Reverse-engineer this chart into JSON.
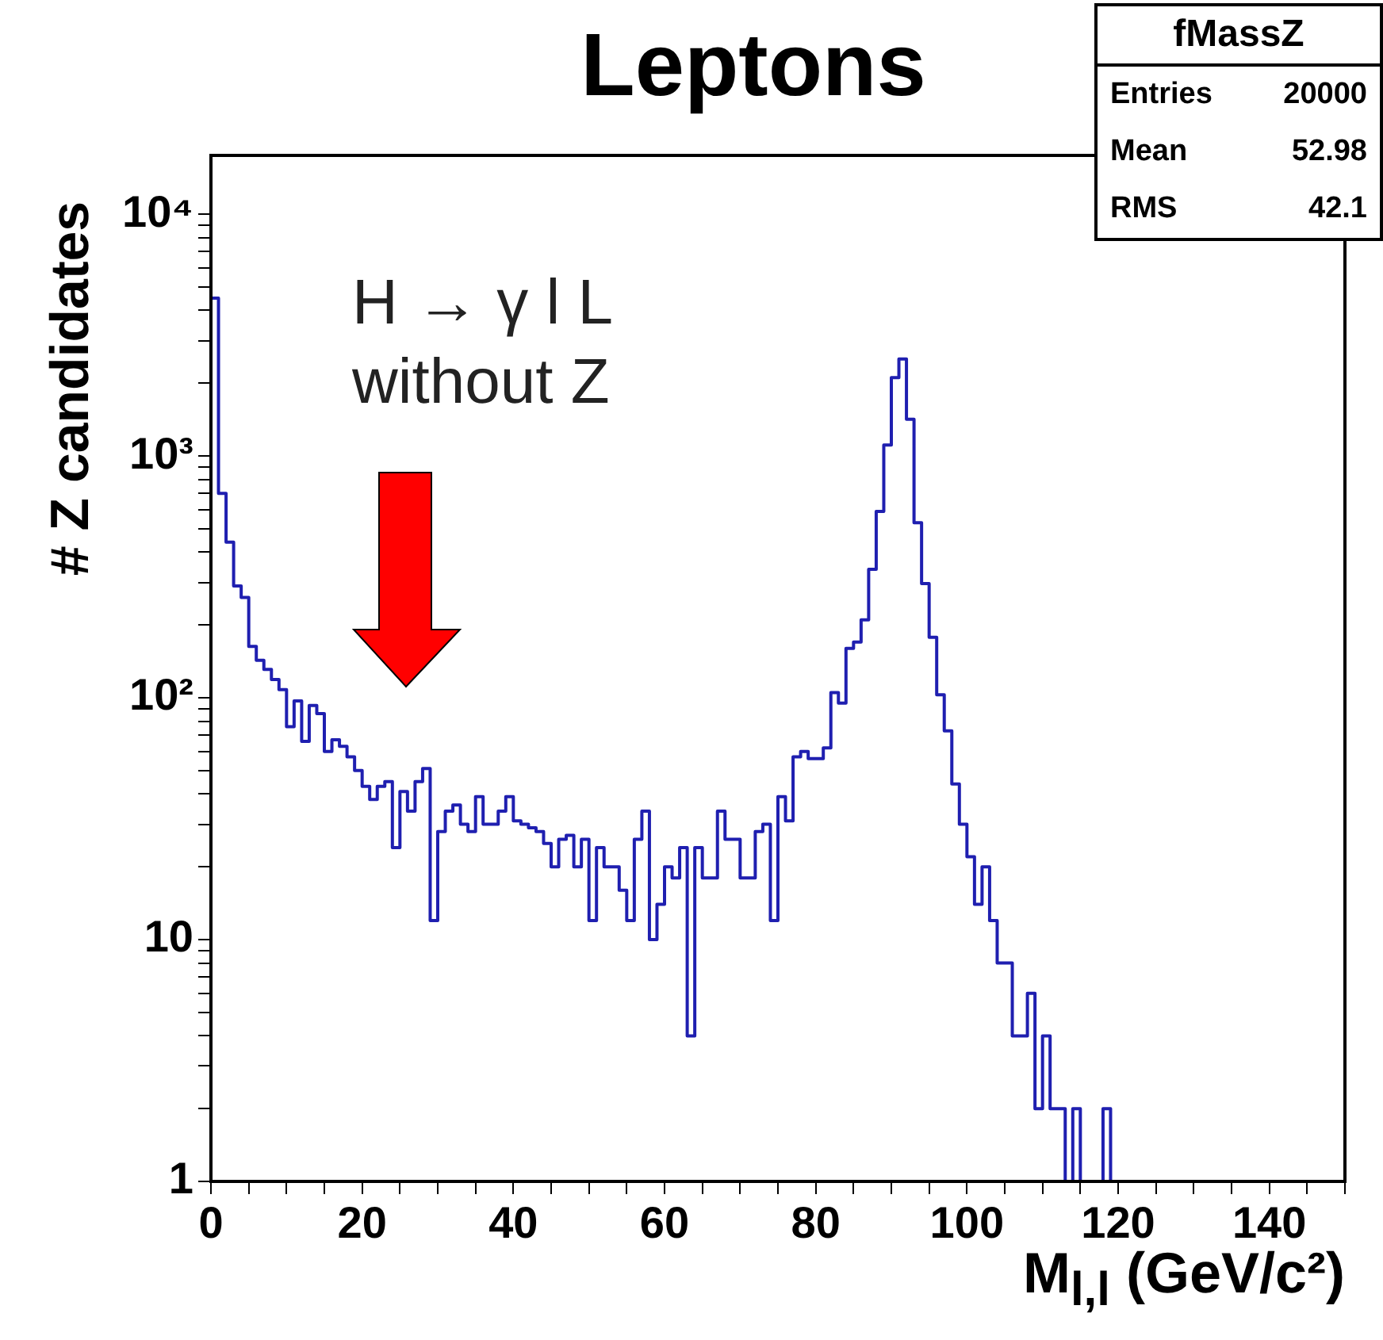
{
  "chart_data": {
    "type": "histogram",
    "title": "Leptons",
    "xlabel": "M$_{l,l}$ (GeV/c²)",
    "ylabel": "# Z candidates",
    "annotations": [
      "fMassZ",
      "Entries",
      "20000",
      "Mean",
      "52.98",
      "RMS",
      "42.1",
      "H → γ l L",
      "without Z"
    ],
    "bins": [
      0,
      1,
      2,
      3,
      4,
      5,
      6,
      7,
      8,
      9,
      10,
      11,
      12,
      13,
      14,
      15,
      16,
      17,
      18,
      19,
      20,
      21,
      22,
      23,
      24,
      25,
      26,
      27,
      28,
      29,
      30,
      31,
      32,
      33,
      34,
      35,
      36,
      37,
      38,
      39,
      40,
      41,
      42,
      43,
      44,
      45,
      46,
      47,
      48,
      49,
      50,
      51,
      52,
      53,
      54,
      55,
      56,
      57,
      58,
      59,
      60,
      61,
      62,
      63,
      64,
      65,
      66,
      67,
      68,
      69,
      70,
      71,
      72,
      73,
      74,
      75,
      76,
      77,
      78,
      79,
      80,
      81,
      82,
      83,
      84,
      85,
      86,
      87,
      88,
      89,
      90,
      91,
      92,
      93,
      94,
      95,
      96,
      97,
      98,
      99,
      100,
      101,
      102,
      103,
      104,
      105,
      106,
      107,
      108,
      109,
      110,
      111,
      112,
      113,
      114,
      115,
      116,
      117,
      118,
      119,
      120,
      121,
      122,
      123,
      124,
      125,
      126,
      127,
      128,
      129,
      130,
      131,
      132,
      133,
      134,
      135,
      136,
      137,
      138,
      139,
      140,
      141,
      142,
      143,
      144,
      145,
      146,
      147,
      148,
      149,
      150
    ],
    "values": [
      4500,
      700,
      440,
      290,
      260,
      163,
      143,
      131,
      119,
      108,
      76,
      97,
      66,
      93,
      86,
      60,
      67,
      63,
      57,
      50,
      43,
      38,
      43,
      45,
      24,
      41,
      34,
      45,
      51,
      12,
      28,
      34,
      36,
      30,
      28,
      39,
      30,
      30,
      34,
      39,
      31,
      30,
      29,
      28,
      25,
      20,
      26,
      27,
      20,
      26,
      12,
      24,
      20,
      20,
      16,
      12,
      26,
      34,
      10,
      14,
      20,
      18,
      24,
      4,
      24,
      18,
      18,
      34,
      26,
      26,
      18,
      18,
      28,
      30,
      12,
      39,
      31,
      57,
      60,
      56,
      56,
      62,
      105,
      95,
      160,
      170,
      210,
      340,
      590,
      1110,
      2110,
      2520,
      1420,
      530,
      297,
      178,
      103,
      73,
      44,
      30,
      22,
      14,
      20,
      12,
      8,
      8,
      4,
      4,
      6,
      2,
      4,
      2,
      2,
      null,
      2,
      null,
      null,
      null,
      2,
      null,
      null,
      null,
      null,
      null,
      null,
      null,
      null,
      null,
      null,
      null,
      null,
      null,
      null,
      null,
      null,
      null,
      null,
      null,
      null,
      null,
      null,
      null,
      null,
      null,
      null,
      null,
      null,
      null,
      null,
      null
    ],
    "color": "#1f1fb0",
    "xlim": [
      0,
      150
    ],
    "xticks": [
      0,
      {
        "value": 5,
        "label": null
      },
      {
        "value": 10,
        "label": null
      },
      {
        "value": 15,
        "label": null
      },
      20,
      {
        "value": 25,
        "label": null
      },
      {
        "value": 30,
        "label": null
      },
      {
        "value": 35,
        "label": null
      },
      40,
      {
        "value": 45,
        "label": null
      },
      {
        "value": 50,
        "label": null
      },
      {
        "value": 55,
        "label": null
      },
      60,
      {
        "value": 65,
        "label": null
      },
      {
        "value": 70,
        "label": null
      },
      {
        "value": 75,
        "label": null
      },
      80,
      {
        "value": 85,
        "label": null
      },
      {
        "value": 90,
        "label": null
      },
      {
        "value": 95,
        "label": null
      },
      100,
      {
        "value": 105,
        "label": null
      },
      {
        "value": 110,
        "label": null
      },
      {
        "value": 115,
        "label": null
      },
      120,
      {
        "value": 125,
        "label": null
      },
      {
        "value": 130,
        "label": null
      },
      {
        "value": 135,
        "label": null
      },
      140,
      {
        "value": 145,
        "label": null
      },
      {
        "value": 150,
        "label": null
      }
    ],
    "ylim": [
      1,
      17500
    ],
    "yticks": [
      1,
      {
        "value": 2,
        "label": null
      },
      {
        "value": 3,
        "label": null
      },
      {
        "value": 4,
        "label": null
      },
      {
        "value": 5,
        "label": null
      },
      {
        "value": 6,
        "label": null
      },
      {
        "value": 7,
        "label": null
      },
      {
        "value": 8,
        "label": null
      },
      {
        "value": 9,
        "label": null
      },
      10,
      {
        "value": 20,
        "label": null
      },
      {
        "value": 30,
        "label": null
      },
      {
        "value": 40,
        "label": null
      },
      {
        "value": 50,
        "label": null
      },
      {
        "value": 60,
        "label": null
      },
      {
        "value": 70,
        "label": null
      },
      {
        "value": 80,
        "label": null
      },
      {
        "value": 90,
        "label": null
      },
      {
        "value": 100,
        "label": "10²"
      },
      {
        "value": 200,
        "label": null
      },
      {
        "value": 300,
        "label": null
      },
      {
        "value": 400,
        "label": null
      },
      {
        "value": 500,
        "label": null
      },
      {
        "value": 600,
        "label": null
      },
      {
        "value": 700,
        "label": null
      },
      {
        "value": 800,
        "label": null
      },
      {
        "value": 900,
        "label": null
      },
      {
        "value": 1000,
        "label": "10³"
      },
      {
        "value": 2000,
        "label": null
      },
      {
        "value": 3000,
        "label": null
      },
      {
        "value": 4000,
        "label": null
      },
      {
        "value": 5000,
        "label": null
      },
      {
        "value": 6000,
        "label": null
      },
      {
        "value": 7000,
        "label": null
      },
      {
        "value": 8000,
        "label": null
      },
      {
        "value": 9000,
        "label": null
      },
      {
        "value": 10000,
        "label": "10⁴"
      }
    ],
    "log": true,
    "grid": false,
    "legend": false
  }
}
